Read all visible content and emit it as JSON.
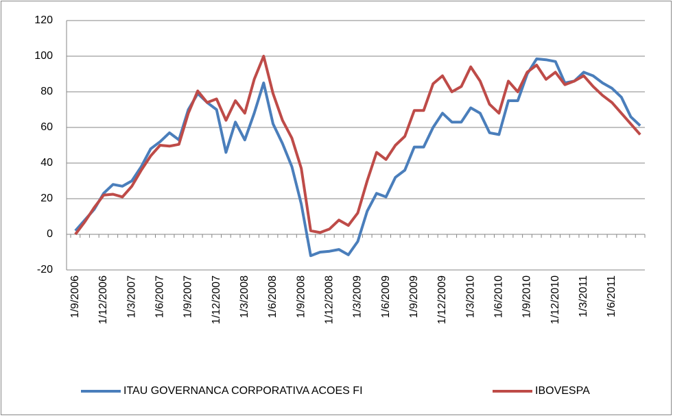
{
  "chart_data": {
    "type": "line",
    "categories": [
      "1/9/2006",
      null,
      null,
      "1/12/2006",
      null,
      null,
      "1/3/2007",
      null,
      null,
      "1/6/2007",
      null,
      null,
      "1/9/2007",
      null,
      null,
      "1/12/2007",
      null,
      null,
      "1/3/2008",
      null,
      null,
      "1/6/2008",
      null,
      null,
      "1/9/2008",
      null,
      null,
      "1/12/2008",
      null,
      null,
      "1/3/2009",
      null,
      null,
      "1/6/2009",
      null,
      null,
      "1/9/2009",
      null,
      null,
      "1/12/2009",
      null,
      null,
      "1/3/2010",
      null,
      null,
      "1/6/2010",
      null,
      null,
      "1/9/2010",
      null,
      null,
      "1/12/2010",
      null,
      null,
      "1/3/2011",
      null,
      null,
      "1/6/2011",
      null,
      null,
      null
    ],
    "series": [
      {
        "name": "ITAU GOVERNANCA CORPORATIVA ACOES FI",
        "color": "#4a7ebb",
        "values": [
          2,
          8,
          14,
          23,
          28,
          27,
          30,
          38,
          48,
          52,
          57,
          53,
          70,
          79,
          74,
          70,
          46,
          63,
          53,
          68,
          85,
          62,
          51,
          38,
          17,
          -12,
          -10,
          -9.5,
          -8.5,
          -11.5,
          -4,
          13,
          23,
          21,
          32,
          36,
          49,
          49,
          60,
          68,
          63,
          63,
          71,
          68,
          57,
          56,
          75,
          75,
          90,
          98.5,
          98,
          97,
          85,
          86,
          91,
          89,
          85,
          82,
          77,
          66,
          61
        ]
      },
      {
        "name": "IBOVESPA",
        "color": "#be4b48",
        "values": [
          0,
          7,
          15,
          22,
          22.5,
          21,
          27,
          36,
          44,
          50,
          49.5,
          50.5,
          68,
          80.5,
          74,
          76,
          64,
          75,
          68,
          87,
          100,
          79,
          64,
          54,
          37,
          2,
          1,
          3,
          8,
          5,
          12,
          30,
          46,
          42,
          50,
          55,
          69.5,
          69.5,
          84.5,
          89,
          80,
          83,
          94,
          86,
          73,
          68,
          86,
          80,
          91,
          95,
          87,
          91,
          84,
          86,
          89,
          83,
          78,
          74,
          68,
          62,
          56
        ]
      }
    ],
    "ylim": [
      -20,
      120
    ],
    "yticks": [
      -20,
      0,
      20,
      40,
      60,
      80,
      100,
      120
    ],
    "grid": true,
    "legend": "bottom"
  }
}
